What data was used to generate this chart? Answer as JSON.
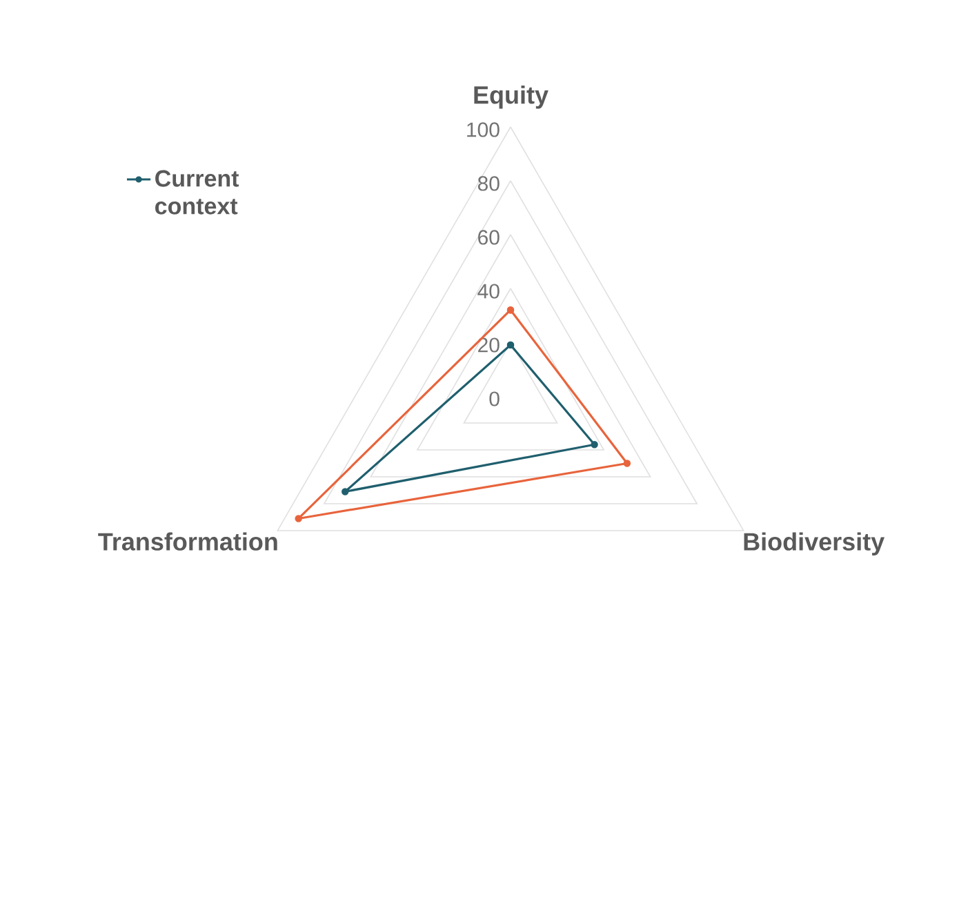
{
  "chart_data": {
    "type": "radar",
    "categories": [
      "Equity",
      "Biodiversity",
      "Transformation"
    ],
    "series": [
      {
        "name": "Current context",
        "color": "#1f5f6e",
        "values": [
          19,
          36,
          71
        ]
      },
      {
        "color": "#e8643c",
        "values": [
          32,
          50,
          91
        ]
      }
    ],
    "ylim": [
      0,
      100
    ],
    "yticks": [
      0,
      20,
      40,
      60,
      80,
      100
    ],
    "legend": "top left",
    "marker": "circle",
    "grid": true
  }
}
